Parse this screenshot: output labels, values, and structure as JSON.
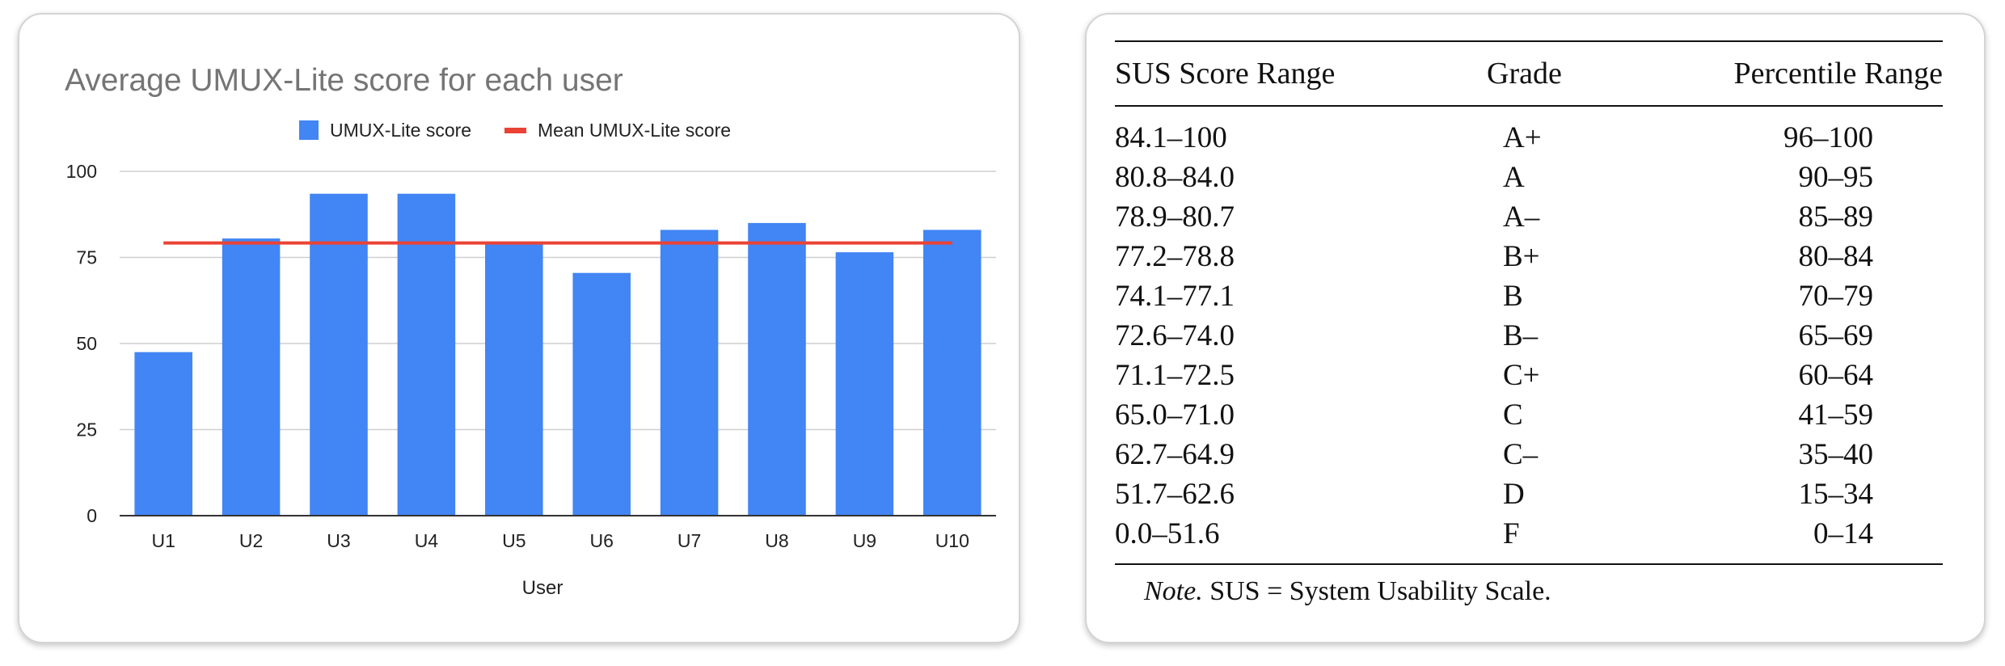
{
  "chart_data": {
    "type": "bar",
    "title": "Average UMUX-Lite score for each user",
    "xlabel": "User",
    "ylabel": "",
    "categories": [
      "U1",
      "U2",
      "U3",
      "U4",
      "U5",
      "U6",
      "U7",
      "U8",
      "U9",
      "U10"
    ],
    "series": [
      {
        "name": "UMUX-Lite score",
        "type": "bar",
        "color": "#4285f4",
        "values": [
          47.5,
          80.5,
          93.5,
          93.5,
          78.75,
          70.5,
          83.0,
          85.0,
          76.5,
          83.0
        ]
      },
      {
        "name": "Mean UMUX-Lite score",
        "type": "line",
        "color": "#ea4335",
        "values": [
          79.2,
          79.2,
          79.2,
          79.2,
          79.2,
          79.2,
          79.2,
          79.2,
          79.2,
          79.2
        ]
      }
    ],
    "ylim": [
      0,
      100
    ],
    "yticks": [
      0,
      25,
      50,
      75,
      100
    ],
    "grid": true,
    "legend_position": "top"
  },
  "table": {
    "headers": {
      "range": "SUS Score Range",
      "grade": "Grade",
      "percentile": "Percentile Range"
    },
    "rows": [
      {
        "range": "84.1–100",
        "grade": "A+",
        "percentile": "96–100"
      },
      {
        "range": "80.8–84.0",
        "grade": "A",
        "percentile": "90–95"
      },
      {
        "range": "78.9–80.7",
        "grade": "A–",
        "percentile": "85–89"
      },
      {
        "range": "77.2–78.8",
        "grade": "B+",
        "percentile": "80–84"
      },
      {
        "range": "74.1–77.1",
        "grade": "B",
        "percentile": "70–79"
      },
      {
        "range": "72.6–74.0",
        "grade": "B–",
        "percentile": "65–69"
      },
      {
        "range": "71.1–72.5",
        "grade": "C+",
        "percentile": "60–64"
      },
      {
        "range": "65.0–71.0",
        "grade": "C",
        "percentile": "41–59"
      },
      {
        "range": "62.7–64.9",
        "grade": "C–",
        "percentile": "35–40"
      },
      {
        "range": "51.7–62.6",
        "grade": "D",
        "percentile": "15–34"
      },
      {
        "range": "0.0–51.6",
        "grade": "F",
        "percentile": "0–14"
      }
    ],
    "note_label": "Note.",
    "note_text": " SUS = System Usability Scale."
  }
}
